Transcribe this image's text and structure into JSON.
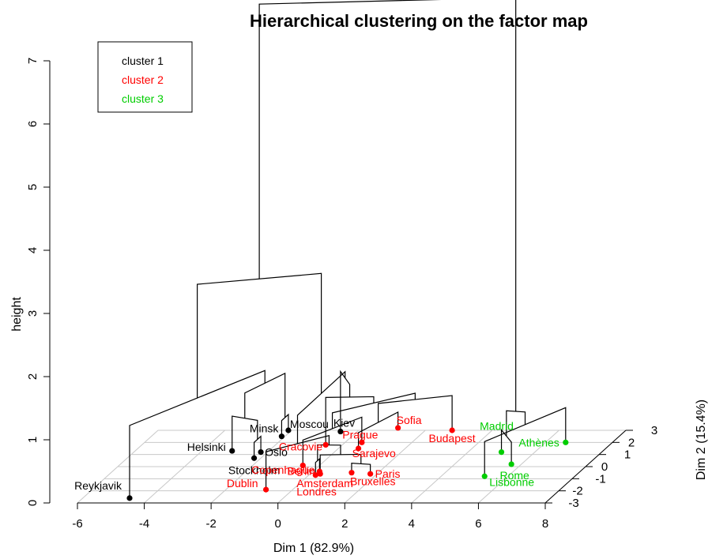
{
  "chart_data": {
    "type": "scatter",
    "title": "Hierarchical clustering on the factor map",
    "xlabel": "Dim 1 (82.9%)",
    "ylabel": "Dim 2 (15.4%)",
    "zlabel": "height",
    "xlim": [
      -6,
      8
    ],
    "ylim": [
      -3,
      3
    ],
    "zlim": [
      0,
      7
    ],
    "x_ticks": [
      "-6",
      "-4",
      "-2",
      "0",
      "2",
      "4",
      "6",
      "8"
    ],
    "y_ticks": [
      "-3",
      "-2",
      "-1",
      "0",
      "1",
      "2",
      "3"
    ],
    "z_ticks": [
      "0",
      "1",
      "2",
      "3",
      "4",
      "5",
      "6",
      "7"
    ],
    "grid": true,
    "legend_position": "top-left",
    "legend": [
      {
        "label": "cluster 1",
        "color": "#000000"
      },
      {
        "label": "cluster 2",
        "color": "#ff0000"
      },
      {
        "label": "cluster 3",
        "color": "#00cd00"
      }
    ],
    "points": [
      {
        "label": "Reykjavik",
        "cluster": 1,
        "x": -4.6,
        "y": -2.6
      },
      {
        "label": "Helsinki",
        "cluster": 1,
        "x": -3.1,
        "y": 1.3
      },
      {
        "label": "Stockholm",
        "cluster": 1,
        "x": -2.2,
        "y": 0.7
      },
      {
        "label": "Oslo",
        "cluster": 1,
        "x": -2.2,
        "y": 1.2
      },
      {
        "label": "Minsk",
        "cluster": 1,
        "x": -2.1,
        "y": 2.5
      },
      {
        "label": "Moscou",
        "cluster": 1,
        "x": -2.1,
        "y": 3.0
      },
      {
        "label": "Kiev",
        "cluster": 1,
        "x": -0.5,
        "y": 2.9
      },
      {
        "label": "Cracovie",
        "cluster": 2,
        "x": -0.5,
        "y": 1.8
      },
      {
        "label": "Berlin",
        "cluster": 2,
        "x": -0.5,
        "y": 0.1
      },
      {
        "label": "Prague",
        "cluster": 2,
        "x": 0.5,
        "y": 2.0
      },
      {
        "label": "Sofia",
        "cluster": 2,
        "x": 1.1,
        "y": 3.2
      },
      {
        "label": "Sarajevo",
        "cluster": 2,
        "x": 0.6,
        "y": 1.5
      },
      {
        "label": "Budapest",
        "cluster": 2,
        "x": 2.8,
        "y": 3.0
      },
      {
        "label": "Paris",
        "cluster": 2,
        "x": 1.8,
        "y": -0.6
      },
      {
        "label": "Bruxelles",
        "cluster": 2,
        "x": 1.2,
        "y": -0.5
      },
      {
        "label": "Amsterdam",
        "cluster": 2,
        "x": 0.3,
        "y": -0.6
      },
      {
        "label": "Copenhague",
        "cluster": 2,
        "x": 0.2,
        "y": -0.4
      },
      {
        "label": "Londres",
        "cluster": 2,
        "x": 0.2,
        "y": -0.7
      },
      {
        "label": "Dublin",
        "cluster": 2,
        "x": -0.8,
        "y": -1.9
      },
      {
        "label": "Madrid",
        "cluster": 3,
        "x": 5.0,
        "y": 1.2
      },
      {
        "label": "Rome",
        "cluster": 3,
        "x": 5.7,
        "y": 0.2
      },
      {
        "label": "Lisbonne",
        "cluster": 3,
        "x": 5.3,
        "y": -0.8
      },
      {
        "label": "Athènes",
        "cluster": 3,
        "x": 6.6,
        "y": 2.0
      }
    ]
  }
}
